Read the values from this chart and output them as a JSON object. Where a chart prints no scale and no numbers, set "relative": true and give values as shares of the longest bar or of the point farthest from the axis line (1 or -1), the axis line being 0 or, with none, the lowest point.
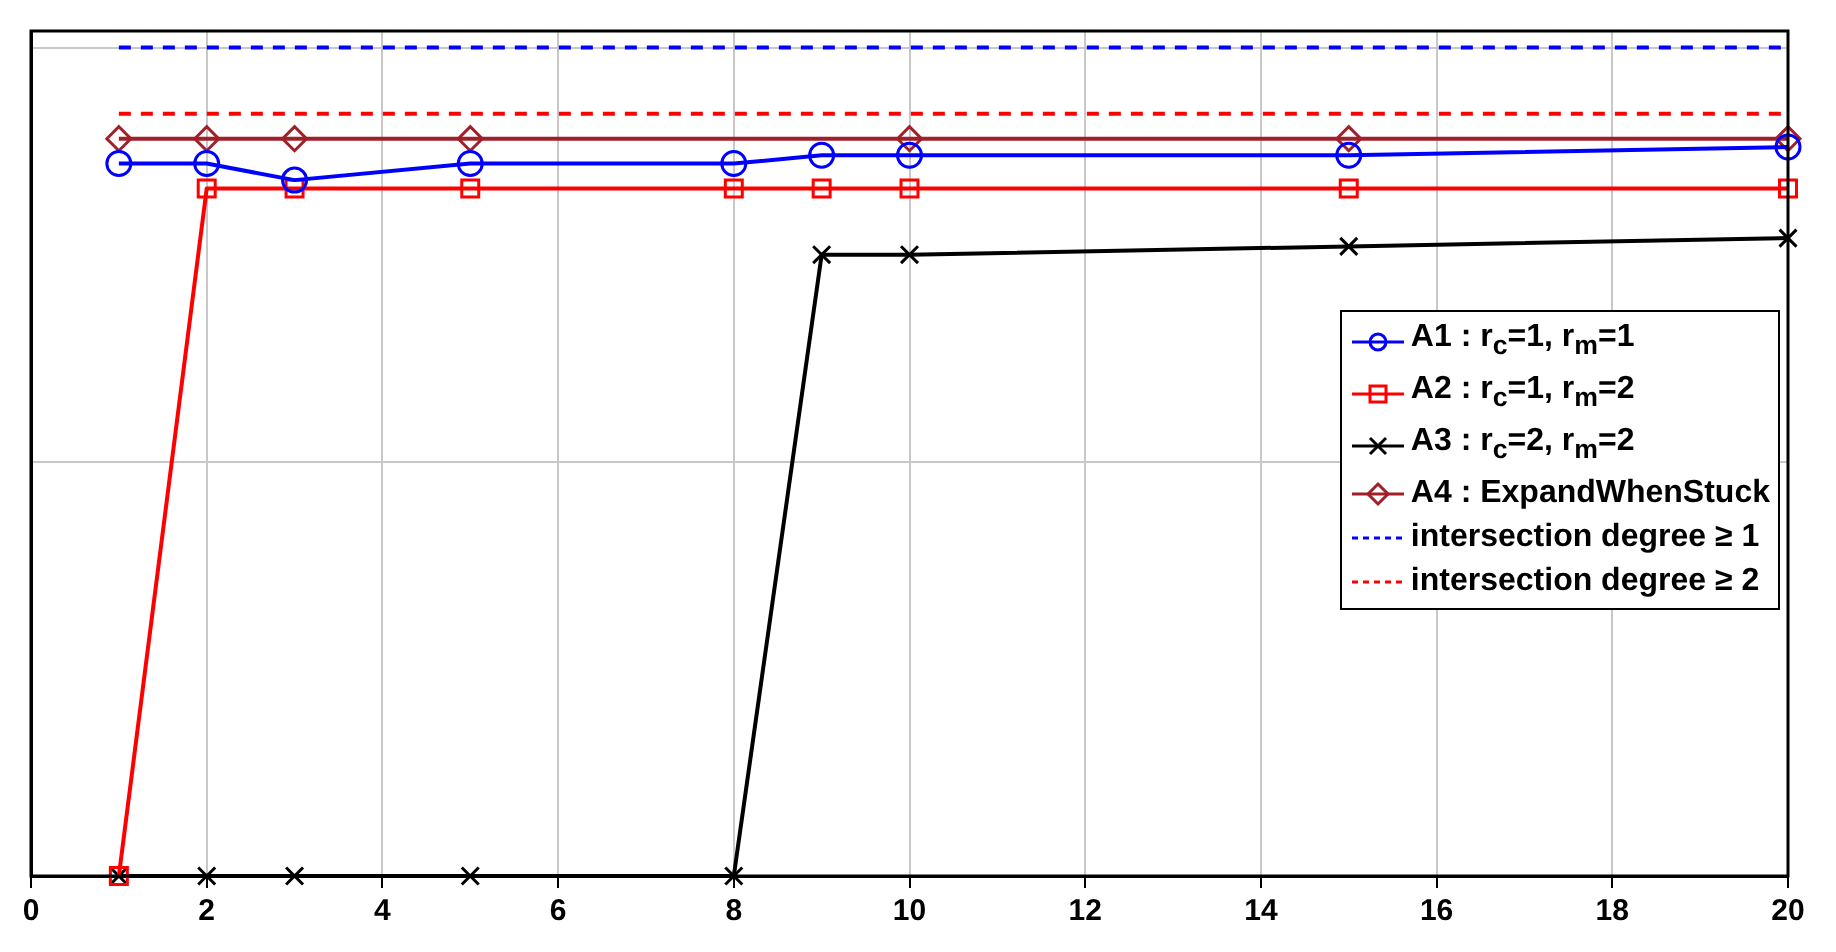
{
  "chart_data": {
    "type": "line",
    "relative": true,
    "xlim": [
      0,
      20
    ],
    "xticks": [
      0,
      2,
      4,
      6,
      8,
      10,
      12,
      14,
      16,
      18,
      20
    ],
    "grid": true,
    "legend": "right",
    "series": [
      {
        "name": "A1 : r$_{c}$=1, r$_{m}$=1",
        "color": "#0000ff",
        "marker": "circle",
        "x": [
          1,
          2,
          3,
          5,
          8,
          9,
          10,
          15,
          20
        ],
        "values": [
          0.86,
          0.86,
          0.84,
          0.86,
          0.86,
          0.87,
          0.87,
          0.87,
          0.88
        ]
      },
      {
        "name": "A2 : r$_{c}$=1, r$_{m}$=2",
        "color": "#ff0000",
        "marker": "square",
        "x": [
          1,
          2,
          3,
          5,
          8,
          9,
          10,
          15,
          20
        ],
        "values": [
          0,
          0.83,
          0.83,
          0.83,
          0.83,
          0.83,
          0.83,
          0.83,
          0.83
        ]
      },
      {
        "name": "A3 : r$_{c}$=2, r$_{m}$=2",
        "color": "#000000",
        "marker": "cross",
        "x": [
          1,
          2,
          3,
          5,
          8,
          9,
          10,
          15,
          20
        ],
        "values": [
          0,
          0,
          0,
          0,
          0,
          0.75,
          0.75,
          0.76,
          0.77
        ]
      },
      {
        "name": "A4 : ExpandWhenStuck",
        "color": "#a0202a",
        "marker": "diamond",
        "x": [
          1,
          2,
          3,
          5,
          10,
          15,
          20
        ],
        "values": [
          0.89,
          0.89,
          0.89,
          0.89,
          0.89,
          0.89,
          0.89
        ]
      },
      {
        "name": "intersection degree ≥ 1",
        "color": "#0000ff",
        "marker": "none",
        "line_style": "dashed",
        "x": [
          1,
          20
        ],
        "values": [
          1,
          1
        ]
      },
      {
        "name": "intersection degree ≥ 2",
        "color": "#ff0000",
        "marker": "none",
        "line_style": "dashed",
        "x": [
          1,
          20
        ],
        "values": [
          0.92,
          0.92
        ]
      }
    ]
  }
}
